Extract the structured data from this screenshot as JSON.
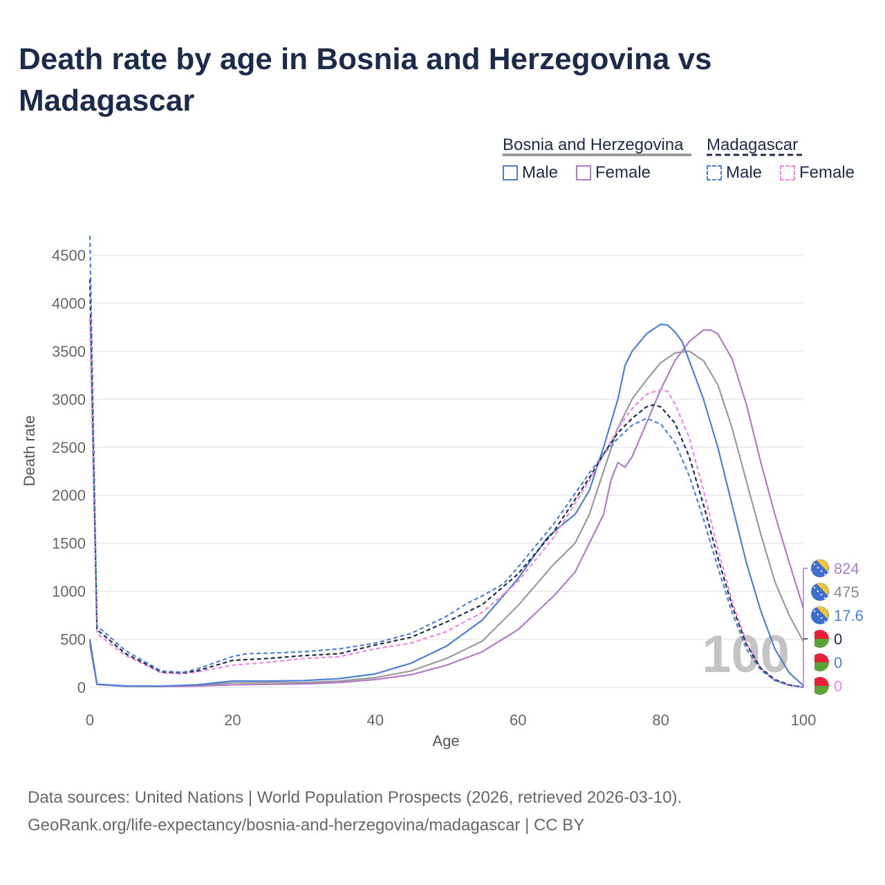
{
  "title": "Death rate by age in Bosnia and Herzegovina vs Madagascar",
  "legend": {
    "groups": [
      {
        "label": "Bosnia and Herzegovina",
        "items": [
          {
            "label": "Male",
            "color": "#4a7fd4",
            "dashed": false
          },
          {
            "label": "Female",
            "color": "#b07ac4",
            "dashed": false
          }
        ]
      },
      {
        "label": "Madagascar",
        "items": [
          {
            "label": "Male",
            "color": "#4a7fd4",
            "dashed": true
          },
          {
            "label": "Female",
            "color": "#f283ec",
            "dashed": true
          }
        ]
      }
    ]
  },
  "watermark": "100",
  "footer": {
    "line1": "Data sources: United Nations | World Population Prospects (2026, retrieved 2026-03-10).",
    "line2": "GeoRank.org/life-expectancy/bosnia-and-herzegovina/madagascar | CC BY"
  },
  "chart_data": {
    "type": "line",
    "title": "Death rate by age in Bosnia and Herzegovina vs Madagascar",
    "xlabel": "Age",
    "ylabel": "Death rate",
    "xlim": [
      0,
      100
    ],
    "ylim": [
      0,
      4700
    ],
    "xticks": [
      0,
      20,
      40,
      60,
      80,
      100
    ],
    "yticks": [
      0,
      500,
      1000,
      1500,
      2000,
      2500,
      3000,
      3500,
      4000,
      4500
    ],
    "grid": true,
    "series": [
      {
        "name": "Bosnia and Herzegovina Total",
        "color": "#999999",
        "dash": false,
        "points": [
          [
            0,
            470
          ],
          [
            1,
            30
          ],
          [
            5,
            12
          ],
          [
            10,
            10
          ],
          [
            15,
            18
          ],
          [
            20,
            45
          ],
          [
            25,
            48
          ],
          [
            30,
            50
          ],
          [
            35,
            65
          ],
          [
            40,
            100
          ],
          [
            45,
            170
          ],
          [
            50,
            300
          ],
          [
            55,
            480
          ],
          [
            60,
            850
          ],
          [
            65,
            1280
          ],
          [
            68,
            1500
          ],
          [
            70,
            1800
          ],
          [
            72,
            2250
          ],
          [
            74,
            2700
          ],
          [
            76,
            3000
          ],
          [
            78,
            3200
          ],
          [
            80,
            3380
          ],
          [
            82,
            3480
          ],
          [
            84,
            3500
          ],
          [
            86,
            3400
          ],
          [
            88,
            3150
          ],
          [
            90,
            2700
          ],
          [
            92,
            2150
          ],
          [
            94,
            1600
          ],
          [
            96,
            1100
          ],
          [
            98,
            750
          ],
          [
            100,
            475
          ]
        ],
        "end_value": "475",
        "end_color": "#888888",
        "end_flag": "bosnia"
      },
      {
        "name": "Bosnia and Herzegovina Male",
        "color": "#4a7fd4",
        "dash": false,
        "points": [
          [
            0,
            500
          ],
          [
            1,
            32
          ],
          [
            5,
            14
          ],
          [
            10,
            12
          ],
          [
            15,
            25
          ],
          [
            20,
            65
          ],
          [
            25,
            65
          ],
          [
            30,
            70
          ],
          [
            35,
            90
          ],
          [
            40,
            140
          ],
          [
            45,
            250
          ],
          [
            50,
            430
          ],
          [
            55,
            700
          ],
          [
            60,
            1130
          ],
          [
            64,
            1550
          ],
          [
            66,
            1680
          ],
          [
            68,
            1800
          ],
          [
            70,
            2050
          ],
          [
            72,
            2500
          ],
          [
            74,
            3000
          ],
          [
            75,
            3350
          ],
          [
            76,
            3500
          ],
          [
            78,
            3680
          ],
          [
            80,
            3780
          ],
          [
            81,
            3770
          ],
          [
            82,
            3700
          ],
          [
            83,
            3600
          ],
          [
            84,
            3400
          ],
          [
            86,
            3000
          ],
          [
            88,
            2500
          ],
          [
            90,
            1900
          ],
          [
            92,
            1300
          ],
          [
            94,
            800
          ],
          [
            96,
            400
          ],
          [
            98,
            150
          ],
          [
            100,
            17.6
          ]
        ],
        "end_value": "17.6",
        "end_color": "#4a7fd4",
        "end_flag": "bosnia"
      },
      {
        "name": "Bosnia and Herzegovina Female",
        "color": "#b07ac4",
        "dash": false,
        "points": [
          [
            0,
            440
          ],
          [
            1,
            28
          ],
          [
            5,
            10
          ],
          [
            10,
            8
          ],
          [
            15,
            12
          ],
          [
            20,
            25
          ],
          [
            25,
            30
          ],
          [
            30,
            35
          ],
          [
            35,
            50
          ],
          [
            40,
            80
          ],
          [
            45,
            130
          ],
          [
            50,
            230
          ],
          [
            55,
            370
          ],
          [
            60,
            600
          ],
          [
            65,
            950
          ],
          [
            68,
            1200
          ],
          [
            70,
            1500
          ],
          [
            72,
            1800
          ],
          [
            73,
            2150
          ],
          [
            74,
            2340
          ],
          [
            75,
            2290
          ],
          [
            76,
            2400
          ],
          [
            78,
            2750
          ],
          [
            80,
            3100
          ],
          [
            82,
            3400
          ],
          [
            84,
            3600
          ],
          [
            86,
            3720
          ],
          [
            87,
            3720
          ],
          [
            88,
            3680
          ],
          [
            90,
            3420
          ],
          [
            92,
            2950
          ],
          [
            94,
            2350
          ],
          [
            96,
            1800
          ],
          [
            98,
            1300
          ],
          [
            100,
            824
          ]
        ],
        "end_value": "824",
        "end_color": "#b07ac4",
        "end_flag": "bosnia"
      },
      {
        "name": "Madagascar Total",
        "color": "#1c2b4a",
        "dash": true,
        "points": [
          [
            0,
            4250
          ],
          [
            1,
            600
          ],
          [
            5,
            350
          ],
          [
            10,
            160
          ],
          [
            13,
            150
          ],
          [
            15,
            170
          ],
          [
            20,
            280
          ],
          [
            25,
            300
          ],
          [
            30,
            330
          ],
          [
            35,
            350
          ],
          [
            40,
            440
          ],
          [
            45,
            520
          ],
          [
            50,
            680
          ],
          [
            55,
            860
          ],
          [
            60,
            1180
          ],
          [
            65,
            1620
          ],
          [
            70,
            2180
          ],
          [
            72,
            2430
          ],
          [
            74,
            2650
          ],
          [
            76,
            2800
          ],
          [
            78,
            2920
          ],
          [
            79,
            2940
          ],
          [
            80,
            2920
          ],
          [
            82,
            2750
          ],
          [
            84,
            2400
          ],
          [
            86,
            1900
          ],
          [
            88,
            1350
          ],
          [
            90,
            850
          ],
          [
            92,
            450
          ],
          [
            94,
            200
          ],
          [
            96,
            80
          ],
          [
            98,
            25
          ],
          [
            100,
            0
          ]
        ],
        "end_value": "0",
        "end_color": "#1c2b4a",
        "end_flag": "madagascar"
      },
      {
        "name": "Madagascar Male",
        "color": "#4a7fd4",
        "dash": true,
        "points": [
          [
            0,
            4700
          ],
          [
            1,
            640
          ],
          [
            5,
            380
          ],
          [
            10,
            170
          ],
          [
            13,
            155
          ],
          [
            15,
            190
          ],
          [
            20,
            320
          ],
          [
            22,
            350
          ],
          [
            25,
            355
          ],
          [
            30,
            370
          ],
          [
            35,
            400
          ],
          [
            40,
            460
          ],
          [
            45,
            560
          ],
          [
            50,
            740
          ],
          [
            53,
            880
          ],
          [
            55,
            950
          ],
          [
            58,
            1080
          ],
          [
            60,
            1250
          ],
          [
            65,
            1700
          ],
          [
            70,
            2230
          ],
          [
            72,
            2430
          ],
          [
            74,
            2590
          ],
          [
            76,
            2730
          ],
          [
            78,
            2800
          ],
          [
            80,
            2740
          ],
          [
            82,
            2550
          ],
          [
            84,
            2200
          ],
          [
            86,
            1750
          ],
          [
            88,
            1250
          ],
          [
            90,
            780
          ],
          [
            92,
            400
          ],
          [
            94,
            180
          ],
          [
            96,
            70
          ],
          [
            98,
            20
          ],
          [
            100,
            0
          ]
        ],
        "end_value": "0",
        "end_color": "#4a7fd4",
        "end_flag": "madagascar"
      },
      {
        "name": "Madagascar Female",
        "color": "#f283ec",
        "dash": true,
        "points": [
          [
            0,
            3850
          ],
          [
            1,
            560
          ],
          [
            5,
            330
          ],
          [
            10,
            150
          ],
          [
            13,
            140
          ],
          [
            15,
            160
          ],
          [
            20,
            230
          ],
          [
            25,
            260
          ],
          [
            30,
            300
          ],
          [
            35,
            320
          ],
          [
            40,
            400
          ],
          [
            45,
            460
          ],
          [
            50,
            580
          ],
          [
            55,
            780
          ],
          [
            60,
            1100
          ],
          [
            65,
            1560
          ],
          [
            70,
            2150
          ],
          [
            72,
            2420
          ],
          [
            74,
            2700
          ],
          [
            76,
            2900
          ],
          [
            78,
            3050
          ],
          [
            80,
            3100
          ],
          [
            81,
            3080
          ],
          [
            82,
            2950
          ],
          [
            84,
            2600
          ],
          [
            86,
            2050
          ],
          [
            88,
            1450
          ],
          [
            90,
            900
          ],
          [
            92,
            470
          ],
          [
            94,
            200
          ],
          [
            96,
            70
          ],
          [
            98,
            20
          ],
          [
            100,
            0
          ]
        ],
        "end_value": "0",
        "end_color": "#f283ec",
        "end_flag": "madagascar"
      }
    ]
  }
}
